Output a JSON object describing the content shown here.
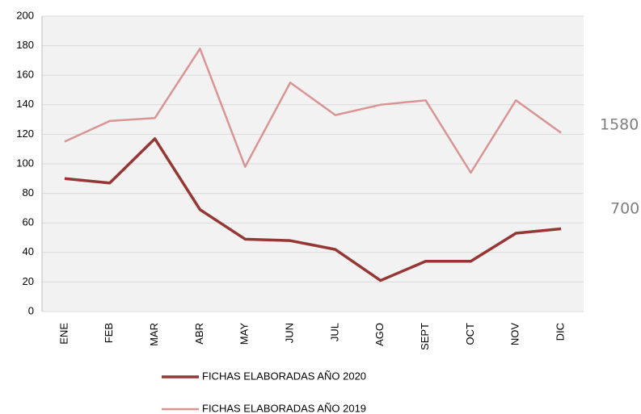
{
  "chart_data": {
    "type": "line",
    "categories": [
      "ENE",
      "FEB",
      "MAR",
      "ABR",
      "MAY",
      "JUN",
      "JUL",
      "AGO",
      "SEPT",
      "OCT",
      "NOV",
      "DIC"
    ],
    "series": [
      {
        "name": "FICHAS ELABORADAS AÑO 2020",
        "color": "#953735",
        "values": [
          90,
          87,
          117,
          69,
          49,
          48,
          42,
          21,
          34,
          34,
          53,
          56
        ]
      },
      {
        "name": "FICHAS ELABORADAS AÑO 2019",
        "color": "#d99594",
        "values": [
          115,
          129,
          131,
          178,
          98,
          155,
          133,
          140,
          143,
          94,
          143,
          121
        ]
      }
    ],
    "ylim": [
      0,
      200
    ],
    "yticks": [
      0,
      20,
      40,
      60,
      80,
      100,
      120,
      140,
      160,
      180,
      200
    ],
    "grid": true,
    "annotations": [
      "1580",
      "700"
    ]
  }
}
